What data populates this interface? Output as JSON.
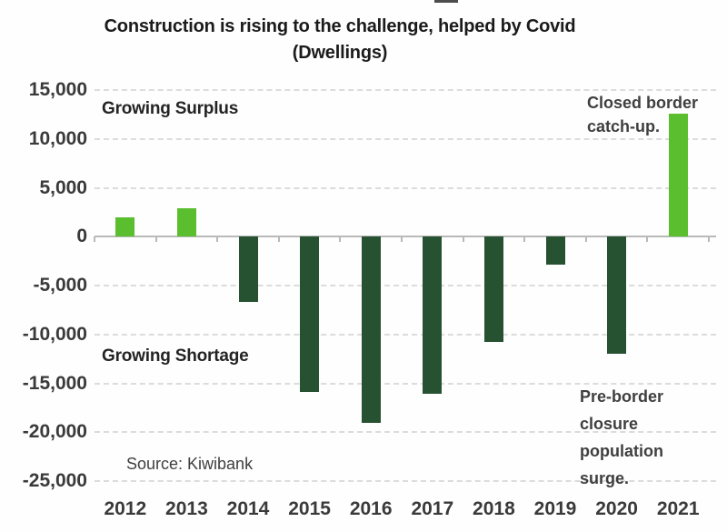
{
  "title": {
    "line1": "Construction is rising to the challenge, helped by Covid",
    "line2": "(Dwellings)"
  },
  "annotations": {
    "surplus": "Growing Surplus",
    "shortage": "Growing Shortage",
    "closed_border": "Closed border catch-up.",
    "pre_border": "Pre-border closure population surge.",
    "source": "Source: Kiwibank"
  },
  "colors": {
    "positive_bar": "#5abe2e",
    "negative_bar": "#265231",
    "gridline": "#dcdcdc",
    "axis_line": "#b9b9b9",
    "axis_text": "#3a3a3a",
    "title_text": "#1b1b1b"
  },
  "chart_data": {
    "type": "bar",
    "title": "Construction is rising to the challenge, helped by Covid (Dwellings)",
    "categories": [
      "2012",
      "2013",
      "2014",
      "2015",
      "2016",
      "2017",
      "2018",
      "2019",
      "2020",
      "2021"
    ],
    "values": [
      2000,
      2900,
      -6700,
      -15900,
      -19000,
      -16100,
      -10800,
      -2900,
      -12000,
      12600
    ],
    "xlabel": "",
    "ylabel": "",
    "ylim": [
      -25000,
      15000
    ],
    "ytick_step": 5000,
    "ytick_labels": [
      "15,000",
      "10,000",
      "5,000",
      "0",
      "-5,000",
      "-10,000",
      "-15,000",
      "-20,000",
      "-25,000"
    ],
    "grid": "horizontal-dashed",
    "legend": "none",
    "bar_color_rule": "positive values bright green, negative values dark green",
    "annotations": [
      "Growing Surplus",
      "Growing Shortage",
      "Closed border catch-up.",
      "Pre-border closure population surge.",
      "Source: Kiwibank"
    ]
  }
}
